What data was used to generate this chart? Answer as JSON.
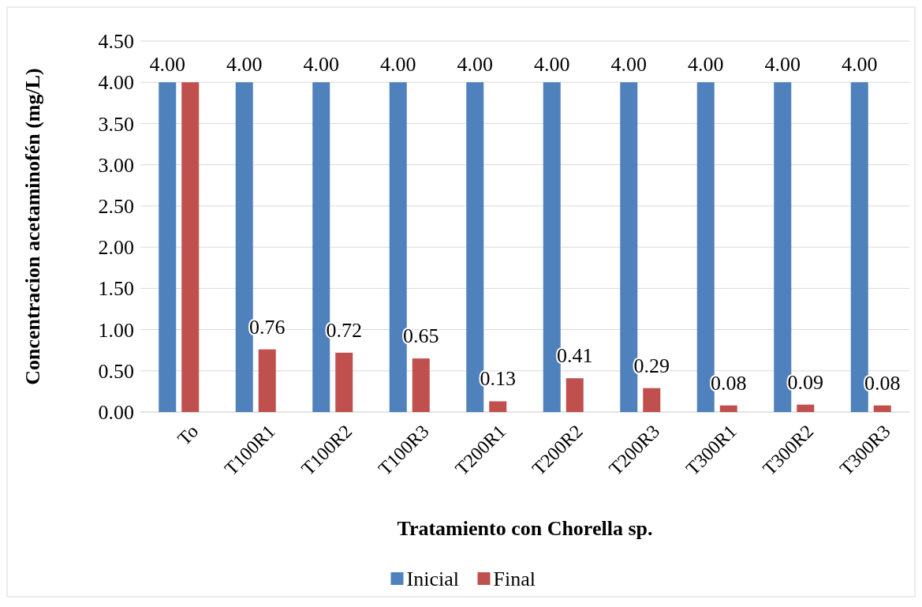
{
  "chart_data": {
    "type": "bar",
    "xlabel": "Tratamiento con Chorella sp.",
    "ylabel": "Concentracion acetaminofén (mg/L)",
    "categories": [
      "To",
      "T100R1",
      "T100R2",
      "T100R3",
      "T200R1",
      "T200R2",
      "T200R3",
      "T300R1",
      "T300R2",
      "T300R3"
    ],
    "series": [
      {
        "name": "Inicial",
        "color": "#4f81bd",
        "values": [
          4,
          4,
          4,
          4,
          4,
          4,
          4,
          4,
          4,
          4
        ],
        "value_labels": [
          "4.00",
          "4.00",
          "4.00",
          "4.00",
          "4.00",
          "4.00",
          "4.00",
          "4.00",
          "4.00",
          "4.00"
        ]
      },
      {
        "name": "Final",
        "color": "#c0504d",
        "values": [
          4,
          0.76,
          0.72,
          0.65,
          0.13,
          0.41,
          0.29,
          0.08,
          0.09,
          0.08
        ],
        "value_labels": [
          null,
          "0.76",
          "0.72",
          "0.65",
          "0.13",
          "0.41",
          "0.29",
          "0.08",
          "0.09",
          "0.08"
        ]
      }
    ],
    "ylim": [
      0,
      4.5
    ],
    "yticks": [
      {
        "value": 0,
        "label": "0.00"
      },
      {
        "value": 0.5,
        "label": "0.50"
      },
      {
        "value": 1,
        "label": "1.00"
      },
      {
        "value": 1.5,
        "label": "1.50"
      },
      {
        "value": 2,
        "label": "2.00"
      },
      {
        "value": 2.5,
        "label": "2.50"
      },
      {
        "value": 3,
        "label": "3.00"
      },
      {
        "value": 3.5,
        "label": "3.50"
      },
      {
        "value": 4,
        "label": "4.00"
      },
      {
        "value": 4.5,
        "label": "4.50"
      }
    ],
    "grid": "y",
    "legend": "bottom"
  }
}
